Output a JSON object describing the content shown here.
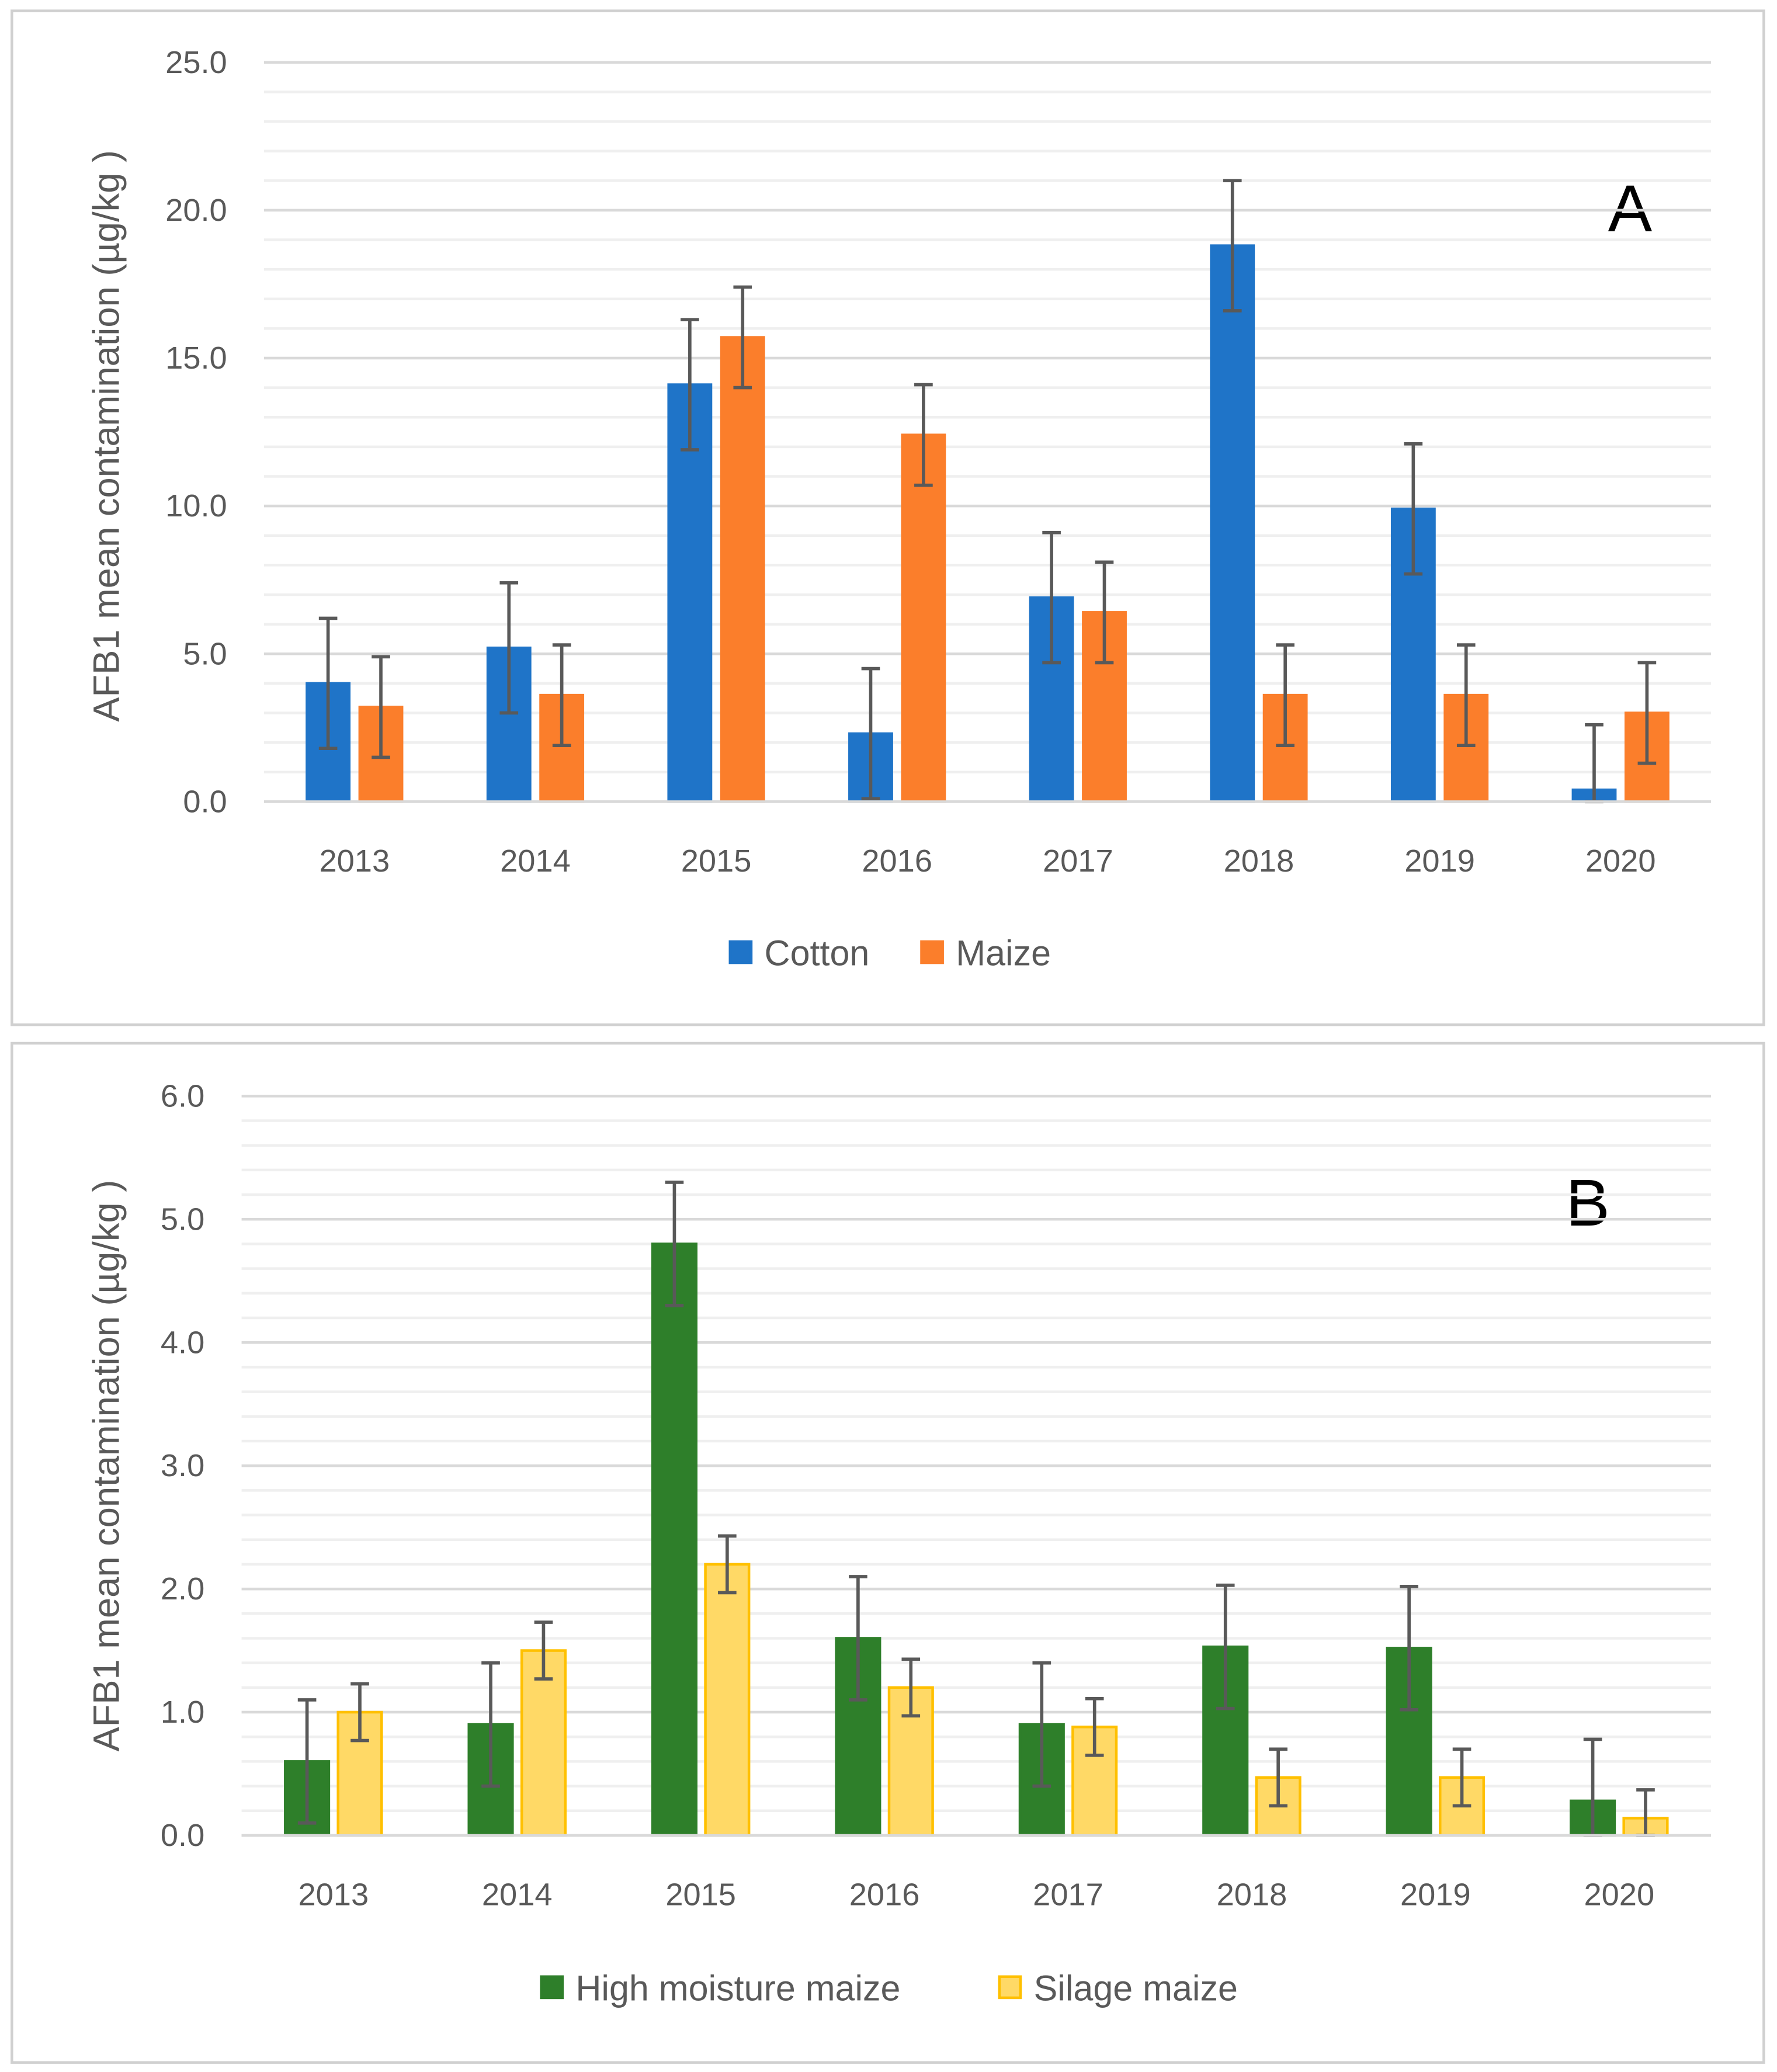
{
  "chart_data": [
    {
      "type": "bar",
      "panel_label": "A",
      "ylabel": "AFB1 mean contamination (µg/kg )",
      "xlabel": "",
      "categories": [
        "2013",
        "2014",
        "2015",
        "2016",
        "2017",
        "2018",
        "2019",
        "2020"
      ],
      "ylim": [
        0,
        25
      ],
      "yticks": [
        "0.0",
        "5.0",
        "10.0",
        "15.0",
        "20.0",
        "25.0"
      ],
      "ytick_values": [
        0,
        5,
        10,
        15,
        20,
        25
      ],
      "minor_step": 1,
      "grid": true,
      "legend_position": "bottom",
      "series": [
        {
          "name": "Cotton",
          "color": "#1F74C8",
          "stroke": "#1F74C8",
          "values": [
            4.0,
            5.2,
            14.1,
            2.3,
            6.9,
            18.8,
            9.9,
            0.4
          ],
          "error": 2.2
        },
        {
          "name": "Maize",
          "color": "#FB7E2B",
          "stroke": "#FB7E2B",
          "values": [
            3.2,
            3.6,
            15.7,
            12.4,
            6.4,
            3.6,
            3.6,
            3.0
          ],
          "error": 1.7
        }
      ]
    },
    {
      "type": "bar",
      "panel_label": "B",
      "ylabel": "AFB1 mean contamination (µg/kg )",
      "xlabel": "",
      "categories": [
        "2013",
        "2014",
        "2015",
        "2016",
        "2017",
        "2018",
        "2019",
        "2020"
      ],
      "ylim": [
        0,
        6
      ],
      "yticks": [
        "0.0",
        "1.0",
        "2.0",
        "3.0",
        "4.0",
        "5.0",
        "6.0"
      ],
      "ytick_values": [
        0,
        1,
        2,
        3,
        4,
        5,
        6
      ],
      "minor_step": 0.2,
      "grid": true,
      "legend_position": "bottom",
      "series": [
        {
          "name": "High moisture maize",
          "color": "#2E7F2A",
          "stroke": "#2E7F2A",
          "values": [
            0.6,
            0.9,
            4.8,
            1.6,
            0.9,
            1.53,
            1.52,
            0.28
          ],
          "error": 0.5
        },
        {
          "name": "Silage maize",
          "color": "#FFD966",
          "stroke": "#FFC000",
          "values": [
            1.0,
            1.5,
            2.2,
            1.2,
            0.88,
            0.47,
            0.47,
            0.14
          ],
          "error": 0.23
        }
      ]
    }
  ]
}
